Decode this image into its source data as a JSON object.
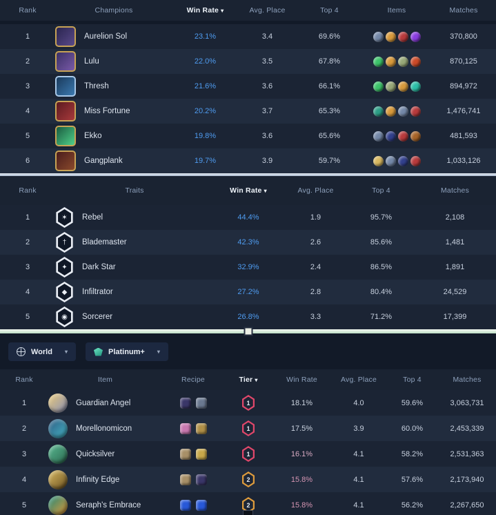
{
  "ui": {
    "sort_caret": "▾",
    "dropdown_caret": "▾"
  },
  "colors": {
    "page_bg": "#121a28",
    "row_odd": "#1b2434",
    "row_even": "#212c3e",
    "header_text": "#8da0bb",
    "value_text": "#c7d0de",
    "winrate_blue": "#4f9cf0",
    "tier1": "#e0476a",
    "tier2": "#dd9b3d",
    "splitter_green": "#bfe0c6",
    "separator_light": "#aebdd2"
  },
  "champions_table": {
    "headers": {
      "rank": "Rank",
      "champions": "Champions",
      "win_rate": "Win Rate",
      "avg_place": "Avg. Place",
      "top4": "Top 4",
      "items": "Items",
      "matches": "Matches"
    },
    "sorted_by": "Win Rate",
    "rows": [
      {
        "rank": "1",
        "name": "Aurelion Sol",
        "win_rate": "23.1%",
        "avg_place": "3.4",
        "top4": "69.6%",
        "matches": "370,800",
        "portrait": [
          "#2a2550",
          "#5a4a8a"
        ],
        "border": "#c8a355",
        "items": [
          "#7488a8",
          "#d89a3c",
          "#b83a3c",
          "#8a3ce0"
        ]
      },
      {
        "rank": "2",
        "name": "Lulu",
        "win_rate": "22.0%",
        "avg_place": "3.5",
        "top4": "67.8%",
        "matches": "870,125",
        "portrait": [
          "#3a3066",
          "#7a5aa8"
        ],
        "border": "#c8a355",
        "items": [
          "#3cc46a",
          "#d89a3c",
          "#98a878",
          "#cc4a28"
        ]
      },
      {
        "rank": "3",
        "name": "Thresh",
        "win_rate": "21.6%",
        "avg_place": "3.6",
        "top4": "66.1%",
        "matches": "894,972",
        "portrait": [
          "#1a3a5c",
          "#3c7ab0"
        ],
        "border": "#a8c8e8",
        "items": [
          "#3cc46a",
          "#98a878",
          "#d89a3c",
          "#2cc0a8"
        ]
      },
      {
        "rank": "4",
        "name": "Miss Fortune",
        "win_rate": "20.2%",
        "avg_place": "3.7",
        "top4": "65.3%",
        "matches": "1,476,741",
        "portrait": [
          "#5c1a20",
          "#a83a3c"
        ],
        "border": "#c8a355",
        "items": [
          "#2c9e86",
          "#d89a3c",
          "#7488a8",
          "#b83a3c"
        ]
      },
      {
        "rank": "5",
        "name": "Ekko",
        "win_rate": "19.8%",
        "avg_place": "3.6",
        "top4": "65.6%",
        "matches": "481,593",
        "portrait": [
          "#1a5c40",
          "#50d08a"
        ],
        "border": "#c8a355",
        "items": [
          "#7488a8",
          "#32408c",
          "#b83a3c",
          "#a86428"
        ]
      },
      {
        "rank": "6",
        "name": "Gangplank",
        "win_rate": "19.7%",
        "avg_place": "3.9",
        "top4": "59.7%",
        "matches": "1,033,126",
        "portrait": [
          "#4a1c1c",
          "#8a4a2c"
        ],
        "border": "#c8a355",
        "items": [
          "#d8b860",
          "#7488a8",
          "#32408c",
          "#b83a3c"
        ]
      }
    ]
  },
  "traits_table": {
    "headers": {
      "rank": "Rank",
      "traits": "Traits",
      "win_rate": "Win Rate",
      "avg_place": "Avg. Place",
      "top4": "Top 4",
      "matches": "Matches"
    },
    "sorted_by": "Win Rate",
    "rows": [
      {
        "rank": "1",
        "name": "Rebel",
        "glyph": "✶",
        "win_rate": "44.4%",
        "avg_place": "1.9",
        "top4": "95.7%",
        "matches": "2,108"
      },
      {
        "rank": "2",
        "name": "Blademaster",
        "glyph": "†",
        "win_rate": "42.3%",
        "avg_place": "2.6",
        "top4": "85.6%",
        "matches": "1,481"
      },
      {
        "rank": "3",
        "name": "Dark Star",
        "glyph": "✦",
        "win_rate": "32.9%",
        "avg_place": "2.4",
        "top4": "86.5%",
        "matches": "1,891"
      },
      {
        "rank": "4",
        "name": "Infiltrator",
        "glyph": "◆",
        "win_rate": "27.2%",
        "avg_place": "2.8",
        "top4": "80.4%",
        "matches": "24,529"
      },
      {
        "rank": "5",
        "name": "Sorcerer",
        "glyph": "◉",
        "win_rate": "26.8%",
        "avg_place": "3.3",
        "top4": "71.2%",
        "matches": "17,399"
      }
    ]
  },
  "filters": {
    "region": {
      "label": "World"
    },
    "rank": {
      "label": "Platinum+"
    }
  },
  "items_table": {
    "headers": {
      "rank": "Rank",
      "item": "Item",
      "recipe": "Recipe",
      "tier": "Tier",
      "win_rate": "Win Rate",
      "avg_place": "Avg. Place",
      "top4": "Top 4",
      "matches": "Matches"
    },
    "sorted_by": "Tier",
    "rows": [
      {
        "rank": "1",
        "name": "Guardian Angel",
        "tier": "1",
        "tier_color": "#e0476a",
        "win_rate": "18.1%",
        "wr_color": "#ccd4e0",
        "avg_place": "4.0",
        "top4": "59.6%",
        "matches": "3,063,731",
        "icon": [
          "#e8c878",
          "#8890b8"
        ],
        "recipe": [
          "#3a3668",
          "#6a7890"
        ]
      },
      {
        "rank": "2",
        "name": "Morellonomicon",
        "tier": "1",
        "tier_color": "#e0476a",
        "win_rate": "17.5%",
        "wr_color": "#ccd4e0",
        "avg_place": "3.9",
        "top4": "60.0%",
        "matches": "2,453,339",
        "icon": [
          "#2c5880",
          "#48b8c8"
        ],
        "recipe": [
          "#c878b0",
          "#b09048"
        ]
      },
      {
        "rank": "3",
        "name": "Quicksilver",
        "tier": "1",
        "tier_color": "#e0476a",
        "win_rate": "16.1%",
        "wr_color": "#d8aac2",
        "avg_place": "4.1",
        "top4": "58.2%",
        "matches": "2,531,363",
        "icon": [
          "#58b890",
          "#2c6850"
        ],
        "recipe": [
          "#a89068",
          "#c8a84a"
        ]
      },
      {
        "rank": "4",
        "name": "Infinity Edge",
        "tier": "2",
        "tier_color": "#dd9b3d",
        "win_rate": "15.8%",
        "wr_color": "#d495b2",
        "avg_place": "4.1",
        "top4": "57.6%",
        "matches": "2,173,940",
        "icon": [
          "#d8b860",
          "#6a5020"
        ],
        "recipe": [
          "#a89068",
          "#3a3668"
        ]
      },
      {
        "rank": "5",
        "name": "Seraph's Embrace",
        "tier": "2",
        "tier_color": "#dd9b3d",
        "win_rate": "15.8%",
        "wr_color": "#d495b2",
        "avg_place": "4.1",
        "top4": "56.2%",
        "matches": "2,267,650",
        "icon": [
          "#1c8878",
          "#e89a38"
        ],
        "recipe": [
          "#2858d8",
          "#2858d8"
        ]
      }
    ]
  }
}
